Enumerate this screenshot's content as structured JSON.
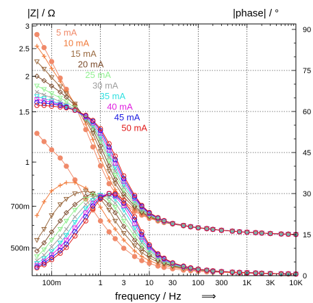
{
  "chart_data": {
    "type": "line",
    "title": "",
    "xlabel": "frequency / Hz",
    "xlabel_arrow": "⟹",
    "ylabel_left": "|Z| / Ω",
    "ylabel_right": "|phase| / °",
    "x_scale": "log",
    "y_left_scale": "log",
    "xlim": [
      0.04,
      10000
    ],
    "ylim_left": [
      0.4,
      3.05
    ],
    "ylim_right": [
      0,
      92
    ],
    "grid": true,
    "legend_position": "top-center",
    "x_ticks": [
      {
        "value": 0.1,
        "label": "100m"
      },
      {
        "value": 1,
        "label": "1"
      },
      {
        "value": 3,
        "label": "3"
      },
      {
        "value": 10,
        "label": "10"
      },
      {
        "value": 30,
        "label": "30"
      },
      {
        "value": 100,
        "label": "100"
      },
      {
        "value": 300,
        "label": "300"
      },
      {
        "value": 1000,
        "label": "1K"
      },
      {
        "value": 3000,
        "label": "3K"
      },
      {
        "value": 10000,
        "label": "10K"
      }
    ],
    "y_left_ticks": [
      {
        "value": 3,
        "label": "3"
      },
      {
        "value": 2.5,
        "label": "2.5"
      },
      {
        "value": 2,
        "label": "2"
      },
      {
        "value": 1.5,
        "label": "1.5"
      },
      {
        "value": 1,
        "label": "1"
      },
      {
        "value": 0.7,
        "label": "700m"
      },
      {
        "value": 0.5,
        "label": "500m"
      }
    ],
    "y_right_ticks": [
      {
        "value": 90,
        "label": "90"
      },
      {
        "value": 75,
        "label": "75"
      },
      {
        "value": 60,
        "label": "60"
      },
      {
        "value": 45,
        "label": "45"
      },
      {
        "value": 30,
        "label": "30"
      },
      {
        "value": 15,
        "label": "15"
      },
      {
        "value": 0,
        "label": "0"
      }
    ],
    "x": [
      0.05,
      0.07,
      0.1,
      0.15,
      0.2,
      0.3,
      0.5,
      0.7,
      1,
      1.5,
      2,
      3,
      5,
      7,
      10,
      15,
      20,
      30,
      50,
      70,
      100,
      150,
      200,
      300,
      500,
      700,
      1000,
      1500,
      2000,
      3000,
      5000,
      7000,
      10000
    ],
    "series": [
      {
        "name": "5 mA",
        "color": "#f08a6a",
        "marker": "filled-circle",
        "impedance": [
          2.8,
          2.52,
          2.25,
          1.97,
          1.8,
          1.58,
          1.3,
          1.13,
          0.97,
          0.84,
          0.78,
          0.715,
          0.672,
          0.652,
          0.635,
          0.622,
          0.614,
          0.606,
          0.598,
          0.593,
          0.588,
          0.584,
          0.581,
          0.577,
          0.573,
          0.57,
          0.568,
          0.566,
          0.564,
          0.562,
          0.56,
          0.559,
          0.558
        ],
        "phase": [
          52,
          49,
          46,
          43,
          40,
          35,
          28,
          24,
          20,
          16,
          13.5,
          10,
          7,
          5.5,
          4.5,
          3.5,
          3,
          2.5,
          2,
          1.8,
          1.6,
          1.4,
          1.3,
          1.2,
          1.1,
          1.0,
          0.9,
          0.8,
          0.8,
          0.7,
          0.7,
          0.6,
          0.6
        ]
      },
      {
        "name": "10 mA",
        "color": "#f07a3a",
        "marker": "plus",
        "impedance": [
          2.55,
          2.35,
          2.13,
          1.92,
          1.78,
          1.6,
          1.36,
          1.2,
          1.03,
          0.88,
          0.8,
          0.73,
          0.68,
          0.657,
          0.638,
          0.624,
          0.615,
          0.606,
          0.598,
          0.593,
          0.588,
          0.584,
          0.581,
          0.577,
          0.573,
          0.57,
          0.568,
          0.566,
          0.564,
          0.562,
          0.56,
          0.559,
          0.558
        ],
        "phase": [
          22,
          27,
          31,
          33,
          34,
          34,
          32,
          29,
          25,
          20,
          17,
          13,
          9,
          7,
          5.5,
          4.3,
          3.7,
          3,
          2.4,
          2.1,
          1.9,
          1.7,
          1.5,
          1.4,
          1.2,
          1.1,
          1.0,
          0.9,
          0.9,
          0.8,
          0.7,
          0.7,
          0.6
        ]
      },
      {
        "name": "15 mA",
        "color": "#9a6a40",
        "marker": "triangle-down",
        "impedance": [
          2.25,
          2.12,
          1.98,
          1.84,
          1.74,
          1.6,
          1.4,
          1.26,
          1.09,
          0.93,
          0.84,
          0.755,
          0.69,
          0.663,
          0.642,
          0.626,
          0.617,
          0.607,
          0.599,
          0.593,
          0.588,
          0.584,
          0.581,
          0.577,
          0.573,
          0.57,
          0.568,
          0.566,
          0.564,
          0.562,
          0.56,
          0.559,
          0.558
        ],
        "phase": [
          13,
          17,
          22,
          26,
          28,
          30,
          31,
          30,
          28,
          24,
          20,
          15.5,
          11,
          8.5,
          6.5,
          5,
          4.2,
          3.4,
          2.7,
          2.3,
          2.0,
          1.8,
          1.6,
          1.4,
          1.3,
          1.2,
          1.1,
          1.0,
          0.9,
          0.8,
          0.7,
          0.7,
          0.6
        ]
      },
      {
        "name": "20 mA",
        "color": "#7a4a2a",
        "marker": "diamond",
        "impedance": [
          2.0,
          1.93,
          1.85,
          1.76,
          1.69,
          1.58,
          1.42,
          1.3,
          1.14,
          0.97,
          0.87,
          0.775,
          0.7,
          0.668,
          0.645,
          0.628,
          0.618,
          0.607,
          0.599,
          0.593,
          0.588,
          0.584,
          0.581,
          0.577,
          0.573,
          0.57,
          0.568,
          0.566,
          0.564,
          0.562,
          0.56,
          0.559,
          0.558
        ],
        "phase": [
          9,
          12,
          16,
          20,
          23,
          26,
          29,
          30,
          29,
          26,
          23,
          18,
          13,
          10,
          7.5,
          5.6,
          4.6,
          3.6,
          2.8,
          2.4,
          2.1,
          1.8,
          1.6,
          1.4,
          1.3,
          1.2,
          1.1,
          1.0,
          0.9,
          0.8,
          0.7,
          0.7,
          0.6
        ]
      },
      {
        "name": "25 mA",
        "color": "#90f090",
        "marker": "triangle-down",
        "impedance": [
          1.85,
          1.8,
          1.74,
          1.68,
          1.63,
          1.55,
          1.42,
          1.32,
          1.18,
          1.01,
          0.9,
          0.795,
          0.712,
          0.675,
          0.649,
          0.63,
          0.619,
          0.608,
          0.599,
          0.594,
          0.588,
          0.584,
          0.581,
          0.577,
          0.573,
          0.57,
          0.568,
          0.566,
          0.564,
          0.562,
          0.56,
          0.559,
          0.558
        ],
        "phase": [
          7,
          9.5,
          13,
          17,
          20,
          24,
          28,
          29.5,
          29.5,
          27.5,
          25,
          20,
          14.5,
          11,
          8.3,
          6.1,
          5,
          3.9,
          3,
          2.5,
          2.2,
          1.9,
          1.7,
          1.5,
          1.3,
          1.2,
          1.1,
          1.0,
          0.9,
          0.8,
          0.7,
          0.7,
          0.6
        ]
      },
      {
        "name": "30 mA",
        "color": "#a0a0a0",
        "marker": "x",
        "impedance": [
          1.76,
          1.72,
          1.68,
          1.63,
          1.59,
          1.53,
          1.42,
          1.33,
          1.2,
          1.04,
          0.93,
          0.815,
          0.724,
          0.682,
          0.653,
          0.632,
          0.62,
          0.608,
          0.599,
          0.594,
          0.588,
          0.584,
          0.581,
          0.577,
          0.573,
          0.57,
          0.568,
          0.566,
          0.564,
          0.562,
          0.56,
          0.559,
          0.558
        ],
        "phase": [
          5.5,
          7.5,
          10.5,
          14,
          17,
          21.5,
          26,
          28.5,
          29.5,
          28.5,
          26.5,
          22,
          16,
          12,
          9,
          6.6,
          5.4,
          4.1,
          3.1,
          2.6,
          2.2,
          1.9,
          1.7,
          1.5,
          1.3,
          1.2,
          1.1,
          1.0,
          0.9,
          0.8,
          0.7,
          0.7,
          0.6
        ]
      },
      {
        "name": "35 mA",
        "color": "#30e0e0",
        "marker": "triangle-down",
        "impedance": [
          1.7,
          1.67,
          1.64,
          1.6,
          1.57,
          1.52,
          1.43,
          1.35,
          1.23,
          1.07,
          0.96,
          0.835,
          0.735,
          0.689,
          0.657,
          0.634,
          0.621,
          0.609,
          0.6,
          0.594,
          0.589,
          0.585,
          0.581,
          0.577,
          0.573,
          0.57,
          0.568,
          0.566,
          0.564,
          0.562,
          0.56,
          0.559,
          0.558
        ],
        "phase": [
          4.5,
          6.2,
          8.8,
          12,
          14.8,
          19.5,
          24.5,
          27.5,
          29.5,
          29.5,
          28,
          24,
          17.5,
          13,
          9.6,
          7,
          5.7,
          4.3,
          3.2,
          2.7,
          2.3,
          1.9,
          1.7,
          1.5,
          1.3,
          1.2,
          1.1,
          1.0,
          0.9,
          0.8,
          0.7,
          0.7,
          0.6
        ]
      },
      {
        "name": "40 mA",
        "color": "#e020e0",
        "marker": "square",
        "impedance": [
          1.66,
          1.64,
          1.62,
          1.59,
          1.56,
          1.52,
          1.44,
          1.37,
          1.26,
          1.1,
          0.99,
          0.855,
          0.745,
          0.695,
          0.66,
          0.636,
          0.622,
          0.609,
          0.6,
          0.594,
          0.589,
          0.585,
          0.581,
          0.577,
          0.573,
          0.57,
          0.568,
          0.566,
          0.564,
          0.562,
          0.56,
          0.559,
          0.558
        ],
        "phase": [
          3.8,
          5.3,
          7.6,
          10.5,
          13,
          17.5,
          23,
          26.5,
          29,
          30,
          29,
          25.5,
          19,
          14,
          10.2,
          7.4,
          6,
          4.5,
          3.3,
          2.7,
          2.3,
          2.0,
          1.7,
          1.5,
          1.3,
          1.2,
          1.1,
          1.0,
          0.9,
          0.8,
          0.7,
          0.7,
          0.6
        ]
      },
      {
        "name": "45 mA",
        "color": "#1a1ae0",
        "marker": "open-circle",
        "impedance": [
          1.62,
          1.61,
          1.6,
          1.58,
          1.56,
          1.52,
          1.45,
          1.39,
          1.29,
          1.13,
          1.02,
          0.875,
          0.755,
          0.7,
          0.663,
          0.637,
          0.623,
          0.61,
          0.6,
          0.594,
          0.589,
          0.585,
          0.581,
          0.577,
          0.573,
          0.57,
          0.568,
          0.566,
          0.564,
          0.562,
          0.56,
          0.559,
          0.558
        ],
        "phase": [
          3.2,
          4.6,
          6.6,
          9.2,
          11.5,
          16,
          21.5,
          25.5,
          28.5,
          30,
          29.5,
          26.5,
          20.5,
          15,
          10.8,
          7.7,
          6.2,
          4.6,
          3.4,
          2.8,
          2.4,
          2.0,
          1.7,
          1.5,
          1.3,
          1.2,
          1.1,
          1.0,
          0.9,
          0.8,
          0.7,
          0.7,
          0.6
        ]
      },
      {
        "name": "50 mA",
        "color": "#e01818",
        "marker": "open-circle",
        "impedance": [
          1.58,
          1.58,
          1.57,
          1.56,
          1.55,
          1.52,
          1.46,
          1.4,
          1.31,
          1.16,
          1.05,
          0.895,
          0.765,
          0.705,
          0.666,
          0.639,
          0.624,
          0.61,
          0.6,
          0.594,
          0.589,
          0.585,
          0.581,
          0.577,
          0.573,
          0.57,
          0.568,
          0.566,
          0.564,
          0.562,
          0.56,
          0.559,
          0.558
        ],
        "phase": [
          2.8,
          4,
          5.8,
          8.2,
          10.3,
          14.5,
          20,
          24.5,
          28,
          30,
          30,
          27.5,
          21.5,
          16,
          11.3,
          8,
          6.4,
          4.7,
          3.5,
          2.9,
          2.4,
          2.0,
          1.8,
          1.5,
          1.3,
          1.2,
          1.1,
          1.0,
          0.9,
          0.8,
          0.7,
          0.7,
          0.6
        ]
      }
    ]
  }
}
